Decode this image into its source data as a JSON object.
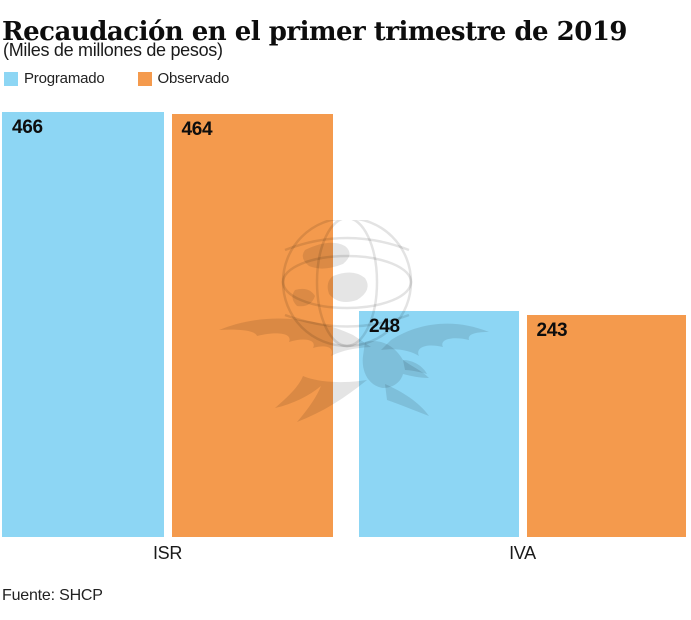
{
  "header": {
    "title": "Recaudación en el primer trimestre de 2019",
    "subtitle": "(Miles de millones de pesos)"
  },
  "legend": {
    "items": [
      {
        "label": "Programado",
        "color": "#8DD6F4"
      },
      {
        "label": "Observado",
        "color": "#F49A4D"
      }
    ]
  },
  "chart_data": {
    "type": "bar",
    "title": "Recaudación en el primer trimestre de 2019",
    "subtitle": "(Miles de millones de pesos)",
    "categories": [
      "ISR",
      "IVA"
    ],
    "series": [
      {
        "name": "Programado",
        "color": "#8DD6F4",
        "values": [
          466,
          248
        ]
      },
      {
        "name": "Observado",
        "color": "#F49A4D",
        "values": [
          464,
          243
        ]
      }
    ],
    "value_labels": true,
    "ylim": [
      0,
      466
    ],
    "grid": false,
    "axis_lines": false,
    "legend_position": "top-left",
    "units": "Miles de millones de pesos"
  },
  "watermark": {
    "name": "eagle-globe-watermark"
  },
  "footer": {
    "source": "Fuente: SHCP"
  }
}
